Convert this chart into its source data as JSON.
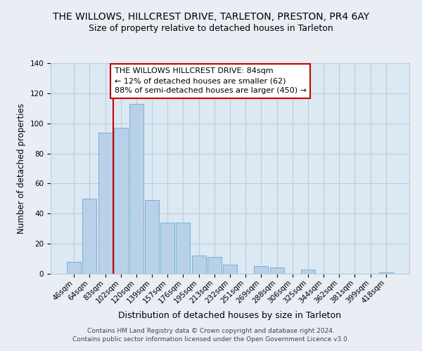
{
  "title": "THE WILLOWS, HILLCREST DRIVE, TARLETON, PRESTON, PR4 6AY",
  "subtitle": "Size of property relative to detached houses in Tarleton",
  "xlabel": "Distribution of detached houses by size in Tarleton",
  "ylabel": "Number of detached properties",
  "bar_labels": [
    "46sqm",
    "64sqm",
    "83sqm",
    "102sqm",
    "120sqm",
    "139sqm",
    "157sqm",
    "176sqm",
    "195sqm",
    "213sqm",
    "232sqm",
    "251sqm",
    "269sqm",
    "288sqm",
    "306sqm",
    "325sqm",
    "344sqm",
    "362sqm",
    "381sqm",
    "399sqm",
    "418sqm"
  ],
  "bar_values": [
    8,
    50,
    94,
    97,
    113,
    49,
    34,
    34,
    12,
    11,
    6,
    0,
    5,
    4,
    0,
    3,
    0,
    0,
    0,
    0,
    1
  ],
  "bar_color": "#b8d0e8",
  "bar_edge_color": "#6aaad4",
  "ylim": [
    0,
    140
  ],
  "yticks": [
    0,
    20,
    40,
    60,
    80,
    100,
    120,
    140
  ],
  "vline_x": 2.5,
  "vline_color": "#cc0000",
  "annotation_text": "THE WILLOWS HILLCREST DRIVE: 84sqm\n← 12% of detached houses are smaller (62)\n88% of semi-detached houses are larger (450) →",
  "annotation_box_color": "#ffffff",
  "annotation_box_edge": "#cc0000",
  "background_color": "#e8eef4",
  "plot_bg_color": "#dce8f2",
  "grid_color": "#b8cede",
  "footer_text": "Contains HM Land Registry data © Crown copyright and database right 2024.\nContains public sector information licensed under the Open Government Licence v3.0.",
  "title_fontsize": 10,
  "subtitle_fontsize": 9,
  "xlabel_fontsize": 9,
  "ylabel_fontsize": 8.5,
  "tick_fontsize": 7.5,
  "annotation_fontsize": 8,
  "footer_fontsize": 6.5
}
